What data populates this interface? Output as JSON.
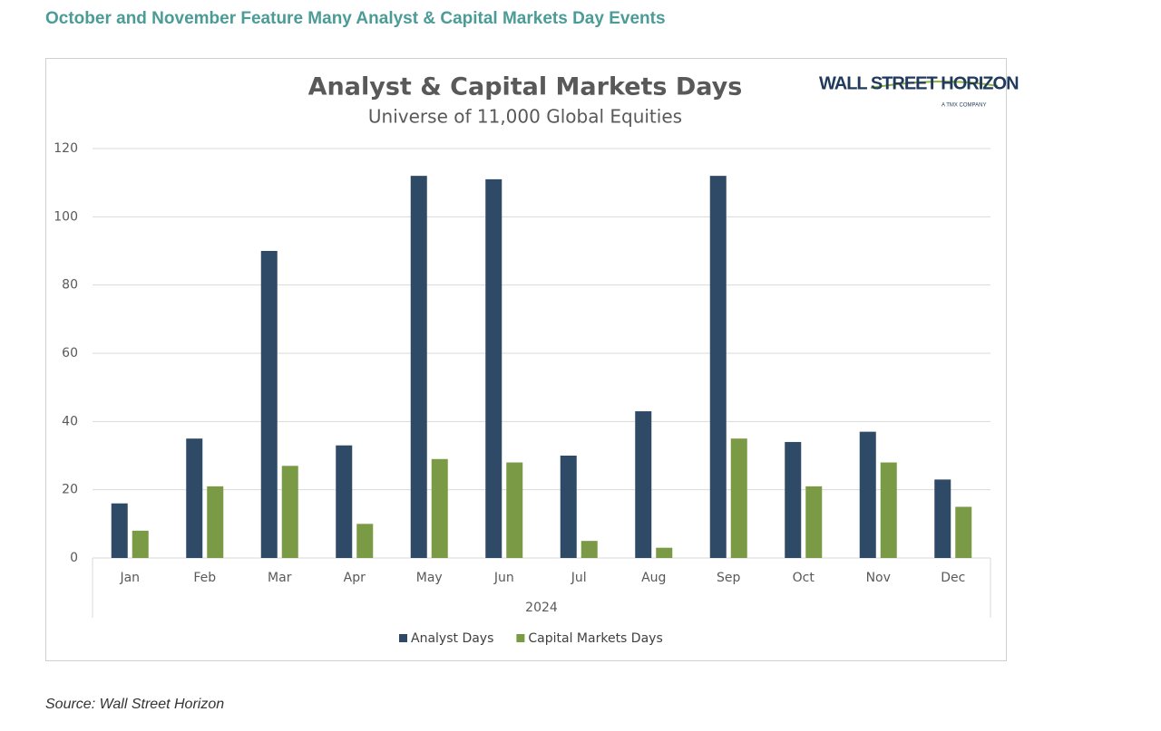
{
  "page": {
    "heading": "October and November Feature Many Analyst & Capital Markets Day Events",
    "source": "Source: Wall Street Horizon"
  },
  "logo": {
    "name": "WALL STREET HORIZON",
    "tagline": "A TMX COMPANY"
  },
  "chart_data": {
    "type": "bar",
    "title": "Analyst & Capital Markets Days",
    "subtitle": "Universe of 11,000 Global Equities",
    "x_label": "2024",
    "categories": [
      "Jan",
      "Feb",
      "Mar",
      "Apr",
      "May",
      "Jun",
      "Jul",
      "Aug",
      "Sep",
      "Oct",
      "Nov",
      "Dec"
    ],
    "series": [
      {
        "name": "Analyst Days",
        "color": "#2e4a66",
        "values": [
          16,
          35,
          90,
          33,
          112,
          111,
          30,
          43,
          112,
          34,
          37,
          23
        ]
      },
      {
        "name": "Capital Markets Days",
        "color": "#7a9a45",
        "values": [
          8,
          21,
          27,
          10,
          29,
          28,
          5,
          3,
          35,
          21,
          28,
          15
        ]
      }
    ],
    "ylim": [
      0,
      120
    ],
    "yticks": [
      0,
      20,
      40,
      60,
      80,
      100,
      120
    ],
    "grid": true,
    "legend": "bottom"
  }
}
